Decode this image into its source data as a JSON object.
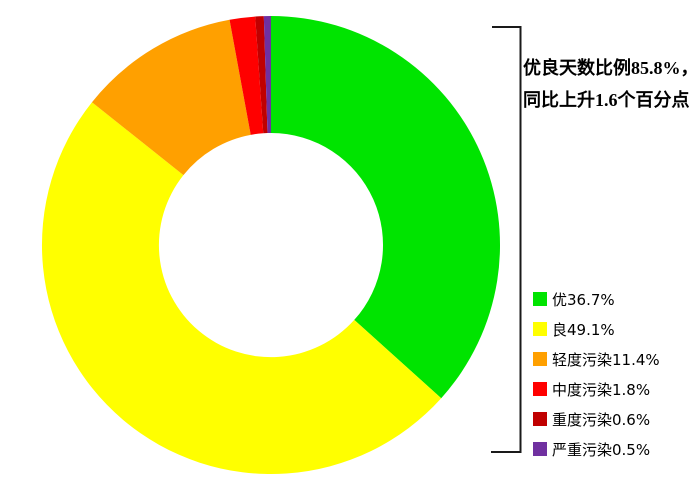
{
  "chart_data": {
    "type": "pie",
    "subtype": "donut",
    "title": "",
    "categories": [
      "优",
      "良",
      "轻度污染",
      "中度污染",
      "重度污染",
      "严重污染"
    ],
    "values": [
      36.7,
      49.1,
      11.4,
      1.8,
      0.6,
      0.5
    ],
    "unit": "%",
    "colors": [
      "#00E400",
      "#FFFF00",
      "#FFA000",
      "#FF0000",
      "#C00000",
      "#7030A0"
    ],
    "start_angle_deg": 0,
    "direction": "clockwise",
    "inner_radius_ratio": 0.49,
    "legend_position": "right",
    "annotation_text": "优良天数比例85.8%，同比上升1.6个百分点"
  },
  "annotation": {
    "line1_prefix": "优良天数比例",
    "line1_value": "85.8%",
    "line1_suffix": "，",
    "line2_prefix": "同比上升",
    "line2_value": "1.6",
    "line2_suffix": "个百分点"
  },
  "legend": {
    "items": [
      {
        "label": "优36.7%",
        "color": "#00E400"
      },
      {
        "label": "良49.1%",
        "color": "#FFFF00"
      },
      {
        "label": "轻度污染11.4%",
        "color": "#FFA000"
      },
      {
        "label": "中度污染1.8%",
        "color": "#FF0000"
      },
      {
        "label": "重度污染0.6%",
        "color": "#C00000"
      },
      {
        "label": "严重污染0.5%",
        "color": "#7030A0"
      }
    ]
  }
}
